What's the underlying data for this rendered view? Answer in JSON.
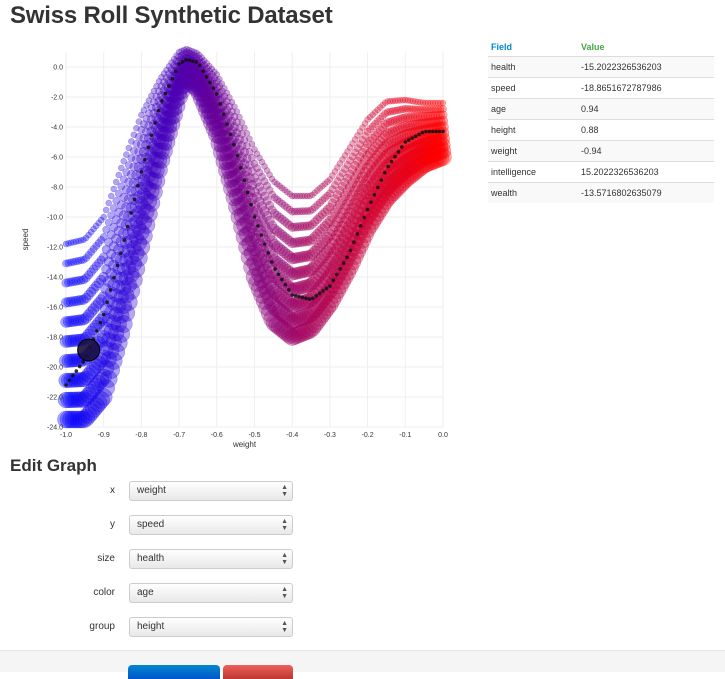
{
  "page": {
    "title": "Swiss Roll Synthetic Dataset"
  },
  "info_table": {
    "headers": {
      "field": "Field",
      "value": "Value"
    },
    "rows": [
      {
        "field": "health",
        "value": "-15.2022326536203"
      },
      {
        "field": "speed",
        "value": "-18.8651672787986"
      },
      {
        "field": "age",
        "value": "0.94"
      },
      {
        "field": "height",
        "value": "0.88"
      },
      {
        "field": "weight",
        "value": "-0.94"
      },
      {
        "field": "intelligence",
        "value": "15.2022326536203"
      },
      {
        "field": "wealth",
        "value": "-13.5716802635079"
      }
    ],
    "colors": {
      "field_header": "#0088cc",
      "value_header": "#46a546"
    }
  },
  "edit_graph": {
    "title": "Edit Graph",
    "fields": [
      {
        "label": "x",
        "value": "weight"
      },
      {
        "label": "y",
        "value": "speed"
      },
      {
        "label": "size",
        "value": "health"
      },
      {
        "label": "color",
        "value": "age"
      },
      {
        "label": "group",
        "value": "height"
      }
    ]
  },
  "chart_data": {
    "type": "scatter",
    "xlabel": "weight",
    "ylabel": "speed",
    "xlim": [
      -1.0,
      0.0
    ],
    "ylim": [
      -24.0,
      1.0
    ],
    "xticks": [
      "-1.0",
      "-0.9",
      "-0.8",
      "-0.7",
      "-0.6",
      "-0.5",
      "-0.4",
      "-0.3",
      "-0.2",
      "-0.1",
      "0.0"
    ],
    "yticks": [
      "0.0",
      "-2.0",
      "-4.0",
      "-6.0",
      "-8.0",
      "-10.0",
      "-12.0",
      "-14.0",
      "-16.0",
      "-18.0",
      "-20.0",
      "-22.0",
      "-24.0"
    ],
    "grid": true,
    "color_scale": {
      "low": "#0000ff",
      "high": "#ff0000"
    },
    "highlight_point": {
      "x": -0.94,
      "y": -18.87
    },
    "center_curve": {
      "x": [
        -1.0,
        -0.95,
        -0.9,
        -0.85,
        -0.8,
        -0.75,
        -0.7,
        -0.68,
        -0.65,
        -0.6,
        -0.55,
        -0.5,
        -0.45,
        -0.4,
        -0.35,
        -0.3,
        -0.25,
        -0.2,
        -0.15,
        -0.1,
        -0.05,
        0.0
      ],
      "y": [
        -21.2,
        -19.5,
        -16.5,
        -12.0,
        -7.0,
        -2.5,
        0.2,
        0.5,
        0.3,
        -1.8,
        -5.5,
        -10.0,
        -13.3,
        -15.2,
        -15.5,
        -14.6,
        -12.5,
        -9.5,
        -6.8,
        -5.0,
        -4.3,
        -4.3
      ]
    },
    "band_upper": {
      "x": [
        -1.0,
        -0.95,
        -0.9,
        -0.85,
        -0.8,
        -0.75,
        -0.7,
        -0.68,
        -0.65,
        -0.6,
        -0.55,
        -0.5,
        -0.45,
        -0.4,
        -0.35,
        -0.3,
        -0.25,
        -0.2,
        -0.15,
        -0.1,
        -0.05,
        0.0
      ],
      "y": [
        -11.8,
        -11.5,
        -10.0,
        -6.5,
        -3.2,
        -0.8,
        1.0,
        1.2,
        0.9,
        -0.5,
        -2.8,
        -5.5,
        -7.6,
        -8.6,
        -8.6,
        -7.5,
        -5.5,
        -3.5,
        -2.3,
        -2.2,
        -2.4,
        -2.4
      ]
    },
    "band_lower": {
      "x": [
        -1.0,
        -0.95,
        -0.9,
        -0.85,
        -0.8,
        -0.75,
        -0.7,
        -0.68,
        -0.65,
        -0.6,
        -0.55,
        -0.5,
        -0.45,
        -0.4,
        -0.35,
        -0.3,
        -0.25,
        -0.2,
        -0.15,
        -0.1,
        -0.05,
        0.0
      ],
      "y": [
        -23.5,
        -23.5,
        -22.0,
        -17.5,
        -12.0,
        -6.5,
        -2.0,
        -0.8,
        -1.5,
        -4.5,
        -9.0,
        -14.0,
        -17.0,
        -18.0,
        -17.5,
        -15.8,
        -13.5,
        -10.8,
        -8.8,
        -7.5,
        -6.5,
        -6.0
      ]
    }
  }
}
